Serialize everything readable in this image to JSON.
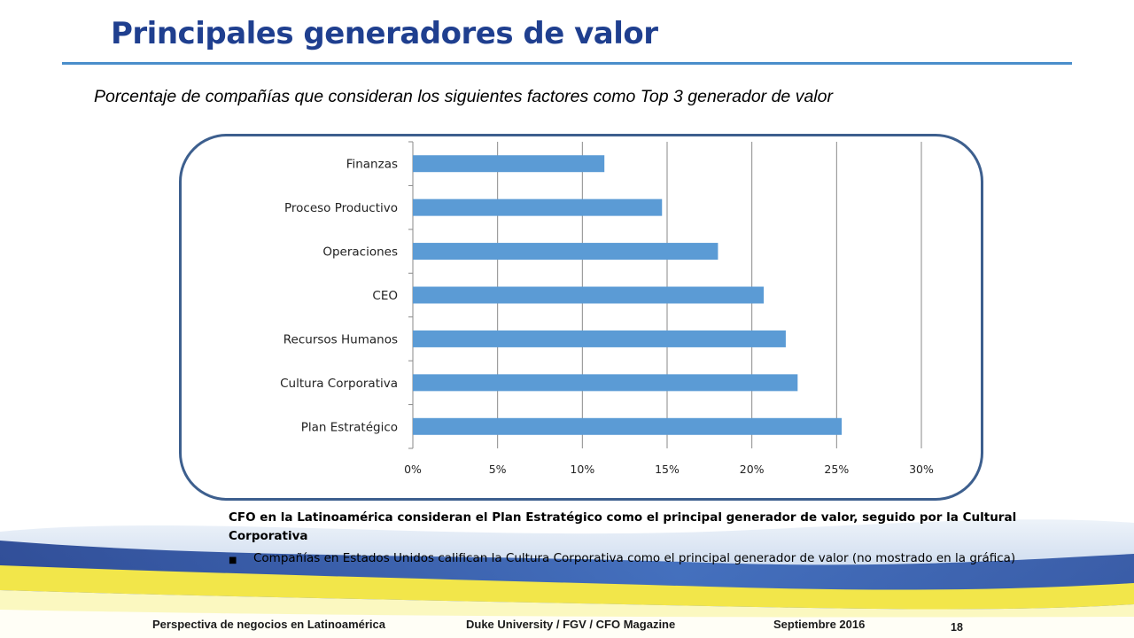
{
  "header": {
    "title": "Principales generadores de valor",
    "subtitle": "Porcentaje de compañías que consideran los siguientes factores como Top 3 generador de valor"
  },
  "chart_data": {
    "type": "bar",
    "orientation": "horizontal",
    "categories": [
      "Finanzas",
      "Proceso Productivo",
      "Operaciones",
      "CEO",
      "Recursos Humanos",
      "Cultura Corporativa",
      "Plan Estratégico"
    ],
    "values": [
      11.3,
      14.7,
      18.0,
      20.7,
      22.0,
      22.7,
      25.3
    ],
    "xlim": [
      0,
      30
    ],
    "xticks": [
      "0%",
      "5%",
      "10%",
      "15%",
      "20%",
      "25%",
      "30%"
    ],
    "grid": true,
    "bar_color": "#5b9bd5"
  },
  "notes": {
    "lead": "CFO en la Latinoamérica consideran el Plan Estratégico como el principal generador de valor, seguido por la Cultural Corporativa",
    "bullet_symbol": "■",
    "bullet": "Compañías en Estados Unidos califican la Cultura Corporativa como el principal generador de valor (no mostrado en la gráfica)"
  },
  "footer": {
    "left": "Perspectiva de negocios en Latinoamérica",
    "center": "Duke University / FGV / CFO Magazine",
    "right": "Septiembre 2016",
    "page": "18"
  },
  "colors": {
    "title": "#1f3f8f",
    "rule": "#4a8ecb",
    "frame": "#3d5f8e",
    "band_blue": "#2a4fa0",
    "band_yellow": "#f2e64a"
  }
}
